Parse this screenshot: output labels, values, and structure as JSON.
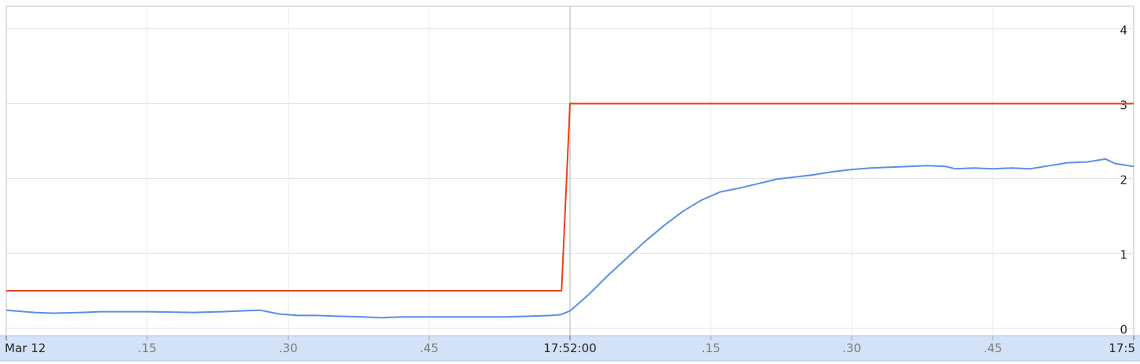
{
  "chart_data": {
    "type": "line",
    "title": "",
    "xlabel": "",
    "ylabel": "",
    "x_unit": "seconds",
    "x_range": [
      -60,
      60
    ],
    "ylim": [
      -0.1,
      4.3
    ],
    "y_ticks": [
      0,
      1,
      2,
      3,
      4
    ],
    "x_ticks": [
      {
        "x": -60,
        "label": "Mar 12",
        "bold": true
      },
      {
        "x": -45,
        "label": ".15",
        "bold": false
      },
      {
        "x": -30,
        "label": ".30",
        "bold": false
      },
      {
        "x": -15,
        "label": ".45",
        "bold": false
      },
      {
        "x": 0,
        "label": "17:52:00",
        "bold": true
      },
      {
        "x": 15,
        "label": ".15",
        "bold": false
      },
      {
        "x": 30,
        "label": ".30",
        "bold": false
      },
      {
        "x": 45,
        "label": ".45",
        "bold": false
      },
      {
        "x": 60,
        "label": "17:5",
        "bold": true
      }
    ],
    "series": [
      {
        "color": "#e8421a",
        "x": [
          -60,
          -0.9,
          0,
          60
        ],
        "y": [
          0.5,
          0.5,
          3.0,
          3.0
        ]
      },
      {
        "color": "#5b8fe6",
        "x": [
          -60,
          -57,
          -55,
          -52,
          -50,
          -48,
          -45,
          -40,
          -37,
          -35,
          -33,
          -31,
          -29,
          -27,
          -25,
          -22,
          -20,
          -18,
          -15,
          -12,
          -10,
          -7,
          -4,
          -2,
          -1,
          0,
          2,
          4,
          6,
          8,
          10,
          12,
          14,
          16,
          18,
          20,
          22,
          24,
          26,
          28,
          30,
          32,
          34,
          36,
          38,
          40,
          41,
          43,
          45,
          47,
          49,
          51,
          53,
          55,
          57,
          58,
          60
        ],
        "y": [
          0.24,
          0.21,
          0.2,
          0.21,
          0.22,
          0.22,
          0.22,
          0.21,
          0.22,
          0.23,
          0.24,
          0.19,
          0.17,
          0.17,
          0.16,
          0.15,
          0.14,
          0.15,
          0.15,
          0.15,
          0.15,
          0.15,
          0.16,
          0.17,
          0.18,
          0.23,
          0.45,
          0.7,
          0.93,
          1.16,
          1.37,
          1.56,
          1.71,
          1.82,
          1.87,
          1.93,
          1.99,
          2.02,
          2.05,
          2.09,
          2.12,
          2.14,
          2.15,
          2.16,
          2.17,
          2.16,
          2.13,
          2.14,
          2.13,
          2.14,
          2.13,
          2.17,
          2.21,
          2.22,
          2.26,
          2.2,
          2.16
        ]
      }
    ]
  }
}
